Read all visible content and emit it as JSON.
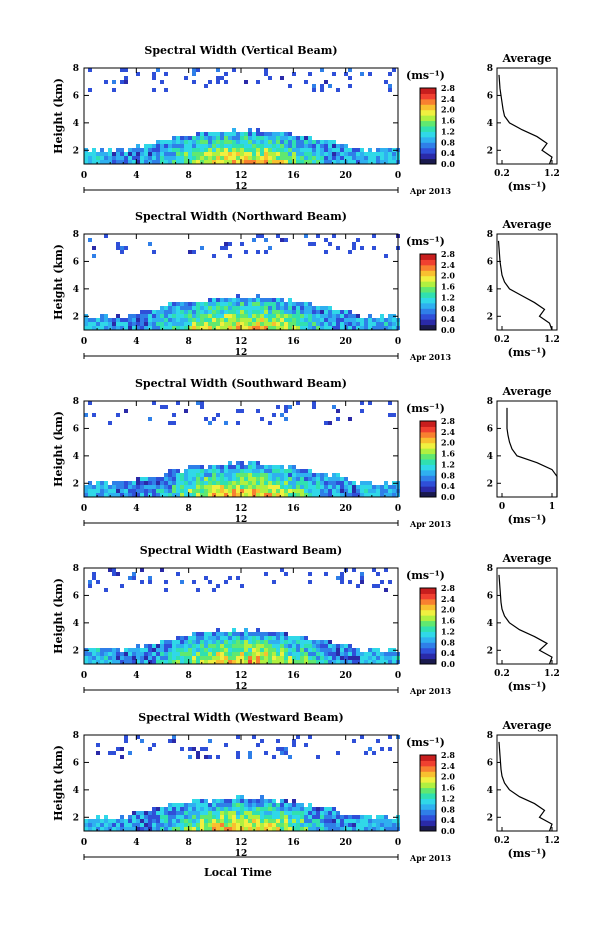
{
  "colors": {
    "colormap": [
      "#1a1a4e",
      "#2a2aa8",
      "#2f4fd8",
      "#2f7fe8",
      "#2fb0f0",
      "#30d8e8",
      "#30e0b0",
      "#60e870",
      "#b0f040",
      "#f0f040",
      "#f8c030",
      "#f88030",
      "#f04030",
      "#c81e1e"
    ],
    "axis": "#000000"
  },
  "chart_data": [
    {
      "type": "heatmap",
      "title": "Spectral Width (Vertical Beam)",
      "ylabel": "Height (km)",
      "xticks": [
        "0",
        "4",
        "8",
        "12",
        "16",
        "20",
        "0"
      ],
      "yticks": [
        "2",
        "4",
        "6",
        "8"
      ],
      "date_label": "12",
      "month_label": "Apr 2013",
      "colorbar_unit": "(ms⁻¹)",
      "colorbar_ticks": [
        "0.0",
        "0.4",
        "0.8",
        "1.2",
        "1.6",
        "2.0",
        "2.4",
        "2.8"
      ],
      "profile_title": "Average",
      "profile_xticks": [
        "0.2",
        "1.2"
      ],
      "profile_yticks": [
        "2",
        "4",
        "6",
        "8"
      ],
      "profile_xlabel": "(ms⁻¹)",
      "profile": {
        "height": [
          1,
          1.5,
          2,
          2.5,
          3,
          3.5,
          4,
          4.5,
          5,
          5.5,
          6,
          6.5,
          7,
          7.5
        ],
        "width": [
          1.15,
          1.2,
          1.0,
          1.1,
          0.9,
          0.6,
          0.35,
          0.25,
          0.22,
          0.2,
          0.18,
          0.16,
          0.15,
          0.14
        ]
      }
    },
    {
      "type": "heatmap",
      "title": "Spectral Width (Northward Beam)",
      "ylabel": "Height (km)",
      "xticks": [
        "0",
        "4",
        "8",
        "12",
        "16",
        "20",
        "0"
      ],
      "yticks": [
        "2",
        "4",
        "6",
        "8"
      ],
      "date_label": "12",
      "month_label": "Apr 2013",
      "colorbar_unit": "(ms⁻¹)",
      "colorbar_ticks": [
        "0.0",
        "0.4",
        "0.8",
        "1.2",
        "1.6",
        "2.0",
        "2.4",
        "2.8"
      ],
      "profile_title": "Average",
      "profile_xticks": [
        "0.2",
        "1.2"
      ],
      "profile_yticks": [
        "2",
        "4",
        "6",
        "8"
      ],
      "profile_xlabel": "(ms⁻¹)",
      "profile": {
        "height": [
          1,
          1.5,
          2,
          2.5,
          3,
          3.5,
          4,
          4.5,
          5,
          5.5,
          6,
          6.5,
          7,
          7.5
        ],
        "width": [
          1.2,
          1.15,
          0.95,
          1.05,
          0.85,
          0.6,
          0.35,
          0.25,
          0.2,
          0.18,
          0.16,
          0.15,
          0.14,
          0.13
        ]
      }
    },
    {
      "type": "heatmap",
      "title": "Spectral Width (Southward Beam)",
      "ylabel": "Height (km)",
      "xticks": [
        "0",
        "4",
        "8",
        "12",
        "16",
        "20",
        "0"
      ],
      "yticks": [
        "2",
        "4",
        "6",
        "8"
      ],
      "date_label": "12",
      "month_label": "Apr 2013",
      "colorbar_unit": "(ms⁻¹)",
      "colorbar_ticks": [
        "0.0",
        "0.4",
        "0.8",
        "1.2",
        "1.6",
        "2.0",
        "2.4",
        "2.8"
      ],
      "profile_title": "Average",
      "profile_xticks": [
        "0",
        "1"
      ],
      "profile_yticks": [
        "2",
        "4",
        "6",
        "8"
      ],
      "profile_xlabel": "(ms⁻¹)",
      "profile": {
        "height": [
          1,
          1.5,
          2,
          2.5,
          3,
          3.5,
          4,
          4.5,
          5,
          5.5,
          6,
          6.5,
          7,
          7.5
        ],
        "width": [
          1.3,
          1.25,
          1.1,
          1.2,
          1.0,
          0.7,
          0.3,
          0.2,
          0.15,
          0.12,
          0.1,
          0.1,
          0.1,
          0.1
        ]
      }
    },
    {
      "type": "heatmap",
      "title": "Spectral Width (Eastward Beam)",
      "ylabel": "Height (km)",
      "xticks": [
        "0",
        "4",
        "8",
        "12",
        "16",
        "20",
        "0"
      ],
      "yticks": [
        "2",
        "4",
        "6",
        "8"
      ],
      "date_label": "12",
      "month_label": "Apr 2013",
      "colorbar_unit": "(ms⁻¹)",
      "colorbar_ticks": [
        "0.0",
        "0.4",
        "0.8",
        "1.2",
        "1.6",
        "2.0",
        "2.4",
        "2.8"
      ],
      "profile_title": "Average",
      "profile_xticks": [
        "0.2",
        "1.2"
      ],
      "profile_yticks": [
        "2",
        "4",
        "6",
        "8"
      ],
      "profile_xlabel": "(ms⁻¹)",
      "profile": {
        "height": [
          1,
          1.5,
          2,
          2.5,
          3,
          3.5,
          4,
          4.5,
          5,
          5.5,
          6,
          6.5,
          7,
          7.5
        ],
        "width": [
          1.15,
          1.2,
          0.95,
          1.1,
          0.85,
          0.55,
          0.35,
          0.25,
          0.2,
          0.18,
          0.17,
          0.16,
          0.15,
          0.14
        ]
      }
    },
    {
      "type": "heatmap",
      "title": "Spectral Width (Westward Beam)",
      "ylabel": "Height (km)",
      "xticks": [
        "0",
        "4",
        "8",
        "12",
        "16",
        "20",
        "0"
      ],
      "yticks": [
        "2",
        "4",
        "6",
        "8"
      ],
      "date_label": "12",
      "month_label": "Apr 2013",
      "colorbar_unit": "(ms⁻¹)",
      "colorbar_ticks": [
        "0.0",
        "0.4",
        "0.8",
        "1.2",
        "1.6",
        "2.0",
        "2.4",
        "2.8"
      ],
      "profile_title": "Average",
      "profile_xticks": [
        "0.2",
        "1.2"
      ],
      "profile_yticks": [
        "2",
        "4",
        "6",
        "8"
      ],
      "profile_xlabel": "(ms⁻¹)",
      "profile": {
        "height": [
          1,
          1.5,
          2,
          2.5,
          3,
          3.5,
          4,
          4.5,
          5,
          5.5,
          6,
          6.5,
          7,
          7.5
        ],
        "width": [
          1.15,
          1.2,
          0.95,
          1.05,
          0.85,
          0.55,
          0.35,
          0.25,
          0.2,
          0.18,
          0.17,
          0.16,
          0.15,
          0.14
        ]
      }
    }
  ],
  "xlabel": "Local Time"
}
